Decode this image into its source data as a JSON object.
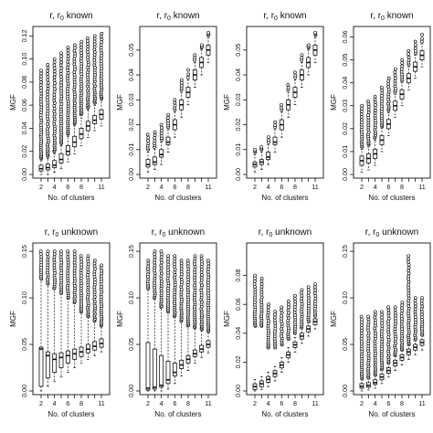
{
  "figure": {
    "background": "#ffffff",
    "ink": "#111111"
  },
  "chart_data": [
    {
      "type": "box",
      "title": {
        "base": "r, r",
        "sub": "0",
        "tail": " known"
      },
      "xlabel": "No. of clusters",
      "ylabel": "MGF",
      "categories": [
        "2",
        "3",
        "4",
        "5",
        "6",
        "7",
        "8",
        "9",
        "10",
        "11"
      ],
      "xtick_labels": [
        "2",
        "4",
        "6",
        "8",
        "11"
      ],
      "ylim": [
        0,
        0.125
      ],
      "yticks": [
        0.0,
        0.02,
        0.04,
        0.06,
        0.08,
        0.1,
        0.12
      ],
      "ytick_labels": [
        "0.00",
        "0.02",
        "0.04",
        "0.06",
        "0.08",
        "0.10",
        "0.12"
      ],
      "median": [
        0.005,
        0.006,
        0.008,
        0.013,
        0.02,
        0.028,
        0.035,
        0.042,
        0.047,
        0.052
      ],
      "q1": [
        0.003,
        0.004,
        0.006,
        0.01,
        0.017,
        0.024,
        0.031,
        0.038,
        0.044,
        0.048
      ],
      "q3": [
        0.008,
        0.009,
        0.012,
        0.018,
        0.025,
        0.033,
        0.04,
        0.046,
        0.051,
        0.056
      ],
      "whisker_low": [
        0.0,
        0.0,
        0.002,
        0.005,
        0.011,
        0.018,
        0.025,
        0.032,
        0.038,
        0.042
      ],
      "whisker_high": [
        0.012,
        0.014,
        0.018,
        0.025,
        0.033,
        0.042,
        0.049,
        0.056,
        0.06,
        0.064
      ],
      "outlier_range": [
        [
          0.014,
          0.09
        ],
        [
          0.016,
          0.095
        ],
        [
          0.02,
          0.1
        ],
        [
          0.027,
          0.105
        ],
        [
          0.035,
          0.11
        ],
        [
          0.044,
          0.112
        ],
        [
          0.052,
          0.115
        ],
        [
          0.058,
          0.118
        ],
        [
          0.062,
          0.12
        ],
        [
          0.066,
          0.122
        ]
      ]
    },
    {
      "type": "box",
      "title": {
        "base": "r, r",
        "sub": "0",
        "tail": " known"
      },
      "xlabel": "No. of clusters",
      "ylabel": "MGF",
      "categories": [
        "2",
        "3",
        "4",
        "5",
        "6",
        "7",
        "8",
        "9",
        "10",
        "11"
      ],
      "xtick_labels": [
        "2",
        "4",
        "6",
        "8",
        "11"
      ],
      "ylim": [
        0,
        0.058
      ],
      "yticks": [
        0.0,
        0.01,
        0.02,
        0.03,
        0.04,
        0.05
      ],
      "ytick_labels": [
        "0.00",
        "0.01",
        "0.02",
        "0.03",
        "0.04",
        "0.05"
      ],
      "median": [
        0.004,
        0.005,
        0.008,
        0.013,
        0.02,
        0.028,
        0.033,
        0.04,
        0.045,
        0.05
      ],
      "q1": [
        0.003,
        0.004,
        0.007,
        0.012,
        0.018,
        0.026,
        0.031,
        0.038,
        0.043,
        0.048
      ],
      "q3": [
        0.006,
        0.007,
        0.01,
        0.015,
        0.022,
        0.03,
        0.035,
        0.042,
        0.047,
        0.052
      ],
      "whisker_low": [
        0.001,
        0.002,
        0.004,
        0.009,
        0.015,
        0.023,
        0.028,
        0.035,
        0.04,
        0.045
      ],
      "whisker_high": [
        0.009,
        0.01,
        0.013,
        0.018,
        0.025,
        0.033,
        0.038,
        0.045,
        0.05,
        0.055
      ],
      "outlier_range": [
        [
          0.01,
          0.016
        ],
        [
          0.011,
          0.017
        ],
        [
          0.014,
          0.02
        ],
        [
          0.019,
          0.024
        ],
        [
          0.026,
          0.03
        ],
        [
          0.034,
          0.038
        ],
        [
          0.039,
          0.042
        ],
        [
          0.046,
          0.048
        ],
        [
          0.051,
          0.052
        ],
        [
          0.056,
          0.057
        ]
      ]
    },
    {
      "type": "box",
      "title": {
        "base": "r, r",
        "sub": "0",
        "tail": " known"
      },
      "xlabel": "No. of clusters",
      "ylabel": "MGF",
      "categories": [
        "2",
        "3",
        "4",
        "5",
        "6",
        "7",
        "8",
        "9",
        "10",
        "11"
      ],
      "xtick_labels": [
        "2",
        "4",
        "6",
        "8",
        "11"
      ],
      "ylim": [
        0,
        0.058
      ],
      "yticks": [
        0.0,
        0.01,
        0.02,
        0.03,
        0.04,
        0.05
      ],
      "ytick_labels": [
        "0.00",
        "0.01",
        "0.02",
        "0.03",
        "0.04",
        "0.05"
      ],
      "median": [
        0.004,
        0.005,
        0.007,
        0.013,
        0.02,
        0.028,
        0.033,
        0.04,
        0.045,
        0.05
      ],
      "q1": [
        0.003,
        0.004,
        0.006,
        0.012,
        0.018,
        0.026,
        0.031,
        0.038,
        0.043,
        0.048
      ],
      "q3": [
        0.005,
        0.006,
        0.009,
        0.015,
        0.022,
        0.03,
        0.035,
        0.042,
        0.047,
        0.052
      ],
      "whisker_low": [
        0.001,
        0.002,
        0.004,
        0.009,
        0.015,
        0.023,
        0.028,
        0.035,
        0.04,
        0.045
      ],
      "whisker_high": [
        0.008,
        0.009,
        0.012,
        0.018,
        0.025,
        0.033,
        0.038,
        0.045,
        0.05,
        0.055
      ],
      "outlier_range": [
        [
          0.009,
          0.01
        ],
        [
          0.01,
          0.011
        ],
        [
          0.013,
          0.015
        ],
        [
          0.019,
          0.021
        ],
        [
          0.026,
          0.028
        ],
        [
          0.034,
          0.036
        ],
        [
          0.039,
          0.041
        ],
        [
          0.046,
          0.048
        ],
        [
          0.051,
          0.052
        ],
        [
          0.056,
          0.057
        ]
      ]
    },
    {
      "type": "box",
      "title": {
        "base": "r, r",
        "sub": "0",
        "tail": " known"
      },
      "xlabel": "No. of clusters",
      "ylabel": "MGF",
      "categories": [
        "2",
        "3",
        "4",
        "5",
        "6",
        "7",
        "8",
        "9",
        "10",
        "11"
      ],
      "xtick_labels": [
        "2",
        "4",
        "6",
        "8",
        "11"
      ],
      "ylim": [
        0,
        0.063
      ],
      "yticks": [
        0.0,
        0.01,
        0.02,
        0.03,
        0.04,
        0.05,
        0.06
      ],
      "ytick_labels": [
        "0.00",
        "0.01",
        "0.02",
        "0.03",
        "0.04",
        "0.05",
        "0.06"
      ],
      "median": [
        0.006,
        0.007,
        0.009,
        0.015,
        0.022,
        0.03,
        0.035,
        0.042,
        0.047,
        0.052
      ],
      "q1": [
        0.004,
        0.005,
        0.007,
        0.013,
        0.02,
        0.028,
        0.033,
        0.04,
        0.045,
        0.05
      ],
      "q3": [
        0.008,
        0.009,
        0.011,
        0.017,
        0.024,
        0.032,
        0.037,
        0.044,
        0.049,
        0.054
      ],
      "whisker_low": [
        0.001,
        0.002,
        0.004,
        0.01,
        0.017,
        0.025,
        0.03,
        0.037,
        0.042,
        0.047
      ],
      "whisker_high": [
        0.011,
        0.012,
        0.015,
        0.02,
        0.027,
        0.035,
        0.04,
        0.047,
        0.052,
        0.057
      ],
      "outlier_range": [
        [
          0.012,
          0.03
        ],
        [
          0.013,
          0.032
        ],
        [
          0.016,
          0.034
        ],
        [
          0.021,
          0.038
        ],
        [
          0.028,
          0.042
        ],
        [
          0.036,
          0.046
        ],
        [
          0.041,
          0.05
        ],
        [
          0.048,
          0.054
        ],
        [
          0.053,
          0.058
        ],
        [
          0.058,
          0.061
        ]
      ]
    },
    {
      "type": "box",
      "title": {
        "base": "r, r",
        "sub": "0",
        "tail": " unknown"
      },
      "xlabel": "No. of clusters",
      "ylabel": "MGF",
      "categories": [
        "2",
        "3",
        "4",
        "5",
        "6",
        "7",
        "8",
        "9",
        "10",
        "11"
      ],
      "xtick_labels": [
        "2",
        "4",
        "6",
        "8",
        "11"
      ],
      "ylim": [
        0,
        0.155
      ],
      "yticks": [
        0.0,
        0.05,
        0.1,
        0.15
      ],
      "ytick_labels": [
        "0.00",
        "0.05",
        "0.10",
        "0.15"
      ],
      "median": [
        0.045,
        0.038,
        0.034,
        0.036,
        0.038,
        0.04,
        0.042,
        0.045,
        0.048,
        0.051
      ],
      "q1": [
        0.005,
        0.014,
        0.02,
        0.025,
        0.03,
        0.034,
        0.037,
        0.041,
        0.044,
        0.047
      ],
      "q3": [
        0.047,
        0.042,
        0.04,
        0.041,
        0.043,
        0.045,
        0.047,
        0.05,
        0.053,
        0.056
      ],
      "whisker_low": [
        0.0,
        0.005,
        0.01,
        0.015,
        0.02,
        0.025,
        0.03,
        0.034,
        0.038,
        0.042
      ],
      "whisker_high": [
        0.12,
        0.115,
        0.11,
        0.105,
        0.1,
        0.095,
        0.085,
        0.08,
        0.075,
        0.07
      ],
      "outlier_range": [
        [
          0.12,
          0.15
        ],
        [
          0.115,
          0.15
        ],
        [
          0.11,
          0.15
        ],
        [
          0.105,
          0.15
        ],
        [
          0.1,
          0.15
        ],
        [
          0.095,
          0.15
        ],
        [
          0.085,
          0.145
        ],
        [
          0.08,
          0.145
        ],
        [
          0.075,
          0.14
        ],
        [
          0.07,
          0.135
        ]
      ]
    },
    {
      "type": "box",
      "title": {
        "base": "r, r",
        "sub": "0",
        "tail": " unknown"
      },
      "xlabel": "No. of clusters",
      "ylabel": "MGF",
      "categories": [
        "2",
        "3",
        "4",
        "5",
        "6",
        "7",
        "8",
        "9",
        "10",
        "11"
      ],
      "xtick_labels": [
        "2",
        "4",
        "6",
        "8",
        "11"
      ],
      "ylim": [
        0,
        0.155
      ],
      "yticks": [
        0.0,
        0.05,
        0.1,
        0.15
      ],
      "ytick_labels": [
        "0.00",
        "0.05",
        "0.10",
        "0.15"
      ],
      "median": [
        0.003,
        0.004,
        0.006,
        0.012,
        0.02,
        0.028,
        0.034,
        0.04,
        0.045,
        0.05
      ],
      "q1": [
        0.001,
        0.002,
        0.004,
        0.008,
        0.016,
        0.024,
        0.03,
        0.037,
        0.042,
        0.047
      ],
      "q3": [
        0.052,
        0.045,
        0.038,
        0.032,
        0.03,
        0.033,
        0.038,
        0.044,
        0.049,
        0.054
      ],
      "whisker_low": [
        0.0,
        0.0,
        0.0,
        0.002,
        0.008,
        0.016,
        0.022,
        0.03,
        0.036,
        0.041
      ],
      "whisker_high": [
        0.11,
        0.1,
        0.09,
        0.085,
        0.08,
        0.075,
        0.07,
        0.068,
        0.066,
        0.064
      ],
      "outlier_range": [
        [
          0.11,
          0.14
        ],
        [
          0.1,
          0.15
        ],
        [
          0.09,
          0.15
        ],
        [
          0.085,
          0.145
        ],
        [
          0.08,
          0.145
        ],
        [
          0.075,
          0.14
        ],
        [
          0.07,
          0.14
        ],
        [
          0.068,
          0.145
        ],
        [
          0.066,
          0.145
        ],
        [
          0.064,
          0.14
        ]
      ]
    },
    {
      "type": "box",
      "title": {
        "base": "r, r",
        "sub": "0",
        "tail": " unknown"
      },
      "xlabel": "No. of clusters",
      "ylabel": "MGF",
      "categories": [
        "2",
        "3",
        "4",
        "5",
        "6",
        "7",
        "8",
        "9",
        "10",
        "11"
      ],
      "xtick_labels": [
        "2",
        "4",
        "6",
        "8",
        "11"
      ],
      "ylim": [
        0,
        0.1
      ],
      "yticks": [
        0.0,
        0.02,
        0.04,
        0.06,
        0.08
      ],
      "ytick_labels": [
        "0.00",
        "0.02",
        "0.04",
        "0.06",
        "0.08"
      ],
      "median": [
        0.003,
        0.005,
        0.008,
        0.012,
        0.018,
        0.025,
        0.032,
        0.038,
        0.043,
        0.048
      ],
      "q1": [
        0.001,
        0.003,
        0.006,
        0.01,
        0.016,
        0.023,
        0.03,
        0.036,
        0.041,
        0.046
      ],
      "q3": [
        0.005,
        0.007,
        0.01,
        0.014,
        0.02,
        0.027,
        0.034,
        0.04,
        0.045,
        0.05
      ],
      "whisker_low": [
        0.0,
        0.001,
        0.003,
        0.007,
        0.013,
        0.02,
        0.027,
        0.033,
        0.038,
        0.043
      ],
      "whisker_high": [
        0.008,
        0.01,
        0.013,
        0.017,
        0.023,
        0.03,
        0.037,
        0.043,
        0.048,
        0.053
      ],
      "outlier_range": [
        [
          0.045,
          0.08
        ],
        [
          0.045,
          0.078
        ],
        [
          0.03,
          0.06
        ],
        [
          0.03,
          0.055
        ],
        [
          0.032,
          0.058
        ],
        [
          0.036,
          0.062
        ],
        [
          0.04,
          0.066
        ],
        [
          0.044,
          0.07
        ],
        [
          0.048,
          0.072
        ],
        [
          0.052,
          0.074
        ]
      ]
    },
    {
      "type": "box",
      "title": {
        "base": "r, r",
        "sub": "0",
        "tail": " unknown"
      },
      "xlabel": "No. of clusters",
      "ylabel": "MGF",
      "categories": [
        "2",
        "3",
        "4",
        "5",
        "6",
        "7",
        "8",
        "9",
        "10",
        "11"
      ],
      "xtick_labels": [
        "2",
        "4",
        "6",
        "8",
        "11"
      ],
      "ylim": [
        0,
        0.155
      ],
      "yticks": [
        0.0,
        0.05,
        0.1,
        0.15
      ],
      "ytick_labels": [
        "0.00",
        "0.05",
        "0.10",
        "0.15"
      ],
      "median": [
        0.005,
        0.006,
        0.009,
        0.015,
        0.022,
        0.03,
        0.036,
        0.042,
        0.047,
        0.052
      ],
      "q1": [
        0.003,
        0.004,
        0.007,
        0.012,
        0.019,
        0.027,
        0.033,
        0.039,
        0.044,
        0.049
      ],
      "q3": [
        0.008,
        0.009,
        0.012,
        0.018,
        0.025,
        0.033,
        0.039,
        0.045,
        0.05,
        0.055
      ],
      "whisker_low": [
        0.0,
        0.001,
        0.003,
        0.008,
        0.015,
        0.022,
        0.028,
        0.034,
        0.039,
        0.044
      ],
      "whisker_high": [
        0.012,
        0.013,
        0.016,
        0.022,
        0.029,
        0.037,
        0.043,
        0.049,
        0.054,
        0.059
      ],
      "outlier_range": [
        [
          0.013,
          0.08
        ],
        [
          0.014,
          0.08
        ],
        [
          0.017,
          0.085
        ],
        [
          0.023,
          0.085
        ],
        [
          0.03,
          0.09
        ],
        [
          0.038,
          0.09
        ],
        [
          0.044,
          0.095
        ],
        [
          0.05,
          0.145
        ],
        [
          0.055,
          0.1
        ],
        [
          0.06,
          0.1
        ]
      ]
    }
  ]
}
